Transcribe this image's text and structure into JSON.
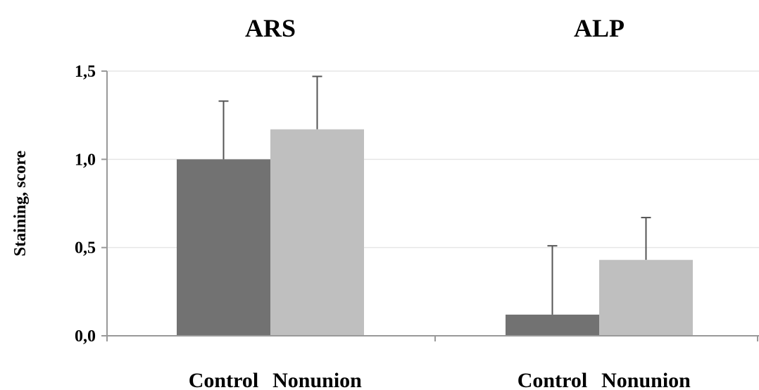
{
  "chart_data": {
    "type": "bar",
    "ylabel": "Staining, score",
    "ylim": [
      0,
      1.5
    ],
    "yticks": [
      0,
      0.5,
      1.0,
      1.5
    ],
    "ytick_labels": [
      "0,0",
      "0,5",
      "1,0",
      "1,5"
    ],
    "grid": true,
    "groups": [
      {
        "title": "ARS",
        "categories": [
          "Control",
          "Nonunion"
        ],
        "values": [
          1.0,
          1.17
        ],
        "errors": [
          0.33,
          0.3
        ]
      },
      {
        "title": "ALP",
        "categories": [
          "Control",
          "Nonunion"
        ],
        "values": [
          0.12,
          0.43
        ],
        "errors": [
          0.39,
          0.24
        ]
      }
    ],
    "colors": {
      "Control": "#727272",
      "Nonunion": "#bfbfbf",
      "error_bar": "#555555",
      "axis": "#999999",
      "grid": "#e6e6e6"
    }
  }
}
